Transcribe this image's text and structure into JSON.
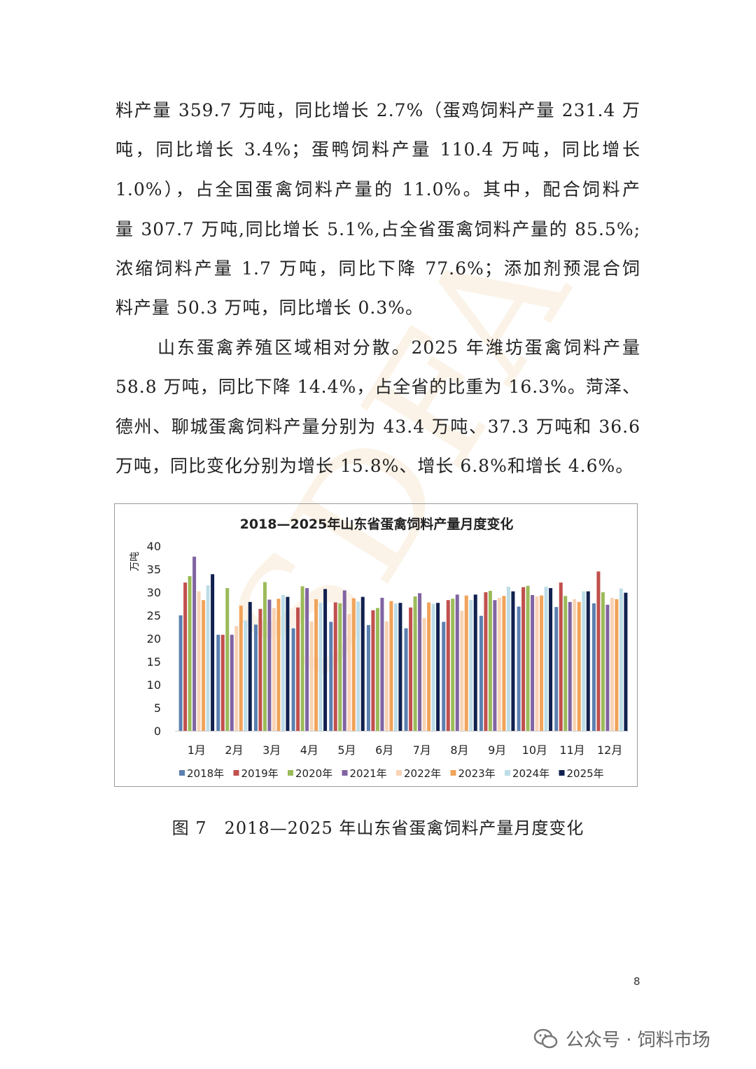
{
  "watermark_text": "SDFA",
  "paragraphs": [
    {
      "lines": [
        "料产量 359.7 万吨，同比增长 2.7%（蛋鸡饲料产量 231.4 万",
        "吨，同比增长 3.4%；蛋鸭饲料产量 110.4 万吨，同比增长",
        "1.0%），占全国蛋禽饲料产量的 11.0%。其中，配合饲料产",
        "量 307.7 万吨,同比增长 5.1%,占全省蛋禽饲料产量的 85.5%;",
        "浓缩饲料产量 1.7 万吨，同比下降 77.6%；添加剂预混合饲",
        "料产量 50.3 万吨，同比增长 0.3%。"
      ]
    },
    {
      "lines": [
        "山东蛋禽养殖区域相对分散。2025 年潍坊蛋禽饲料产量",
        "58.8 万吨，同比下降 14.4%，占全省的比重为 16.3%。菏泽、",
        "德州、聊城蛋禽饲料产量分别为 43.4 万吨、37.3 万吨和 36.6",
        "万吨，同比变化分别为增长 15.8%、增长 6.8%和增长 4.6%。"
      ]
    }
  ],
  "chart_data": {
    "type": "bar",
    "title": "2018—2025年山东省蛋禽饲料产量月度变化",
    "ylabel": "万吨",
    "xlabel": "",
    "ylim": [
      0,
      40
    ],
    "yticks": [
      0,
      5,
      10,
      15,
      20,
      25,
      30,
      35,
      40
    ],
    "grid": false,
    "legend_position": "bottom",
    "categories": [
      "1月",
      "2月",
      "3月",
      "4月",
      "5月",
      "6月",
      "7月",
      "8月",
      "9月",
      "10月",
      "11月",
      "12月"
    ],
    "series": [
      {
        "name": "2018年",
        "color": "#5b7fb0",
        "values": [
          25.0,
          20.8,
          23.0,
          22.2,
          23.6,
          22.9,
          22.2,
          23.6,
          24.9,
          26.9,
          26.8,
          27.6
        ]
      },
      {
        "name": "2019年",
        "color": "#c0504d",
        "values": [
          32.1,
          20.8,
          26.4,
          26.7,
          27.8,
          26.1,
          26.7,
          28.3,
          30.0,
          31.1,
          32.1,
          34.5
        ]
      },
      {
        "name": "2020年",
        "color": "#9bbb59",
        "values": [
          33.5,
          30.9,
          32.2,
          31.3,
          27.6,
          26.6,
          29.1,
          28.6,
          30.3,
          31.4,
          29.2,
          30.0
        ]
      },
      {
        "name": "2021年",
        "color": "#8064a2",
        "values": [
          37.7,
          20.8,
          28.4,
          30.9,
          30.4,
          28.8,
          29.8,
          29.5,
          28.3,
          29.4,
          27.9,
          27.3
        ]
      },
      {
        "name": "2022年",
        "color": "#f8d3b6",
        "values": [
          30.2,
          22.7,
          26.6,
          23.7,
          25.3,
          23.7,
          24.4,
          26.0,
          28.8,
          29.1,
          28.5,
          28.8
        ]
      },
      {
        "name": "2023年",
        "color": "#f0a35a",
        "values": [
          28.3,
          27.1,
          28.6,
          28.5,
          28.7,
          28.1,
          27.8,
          29.3,
          29.2,
          29.3,
          27.9,
          28.5
        ]
      },
      {
        "name": "2024年",
        "color": "#bcdde8",
        "values": [
          31.5,
          23.9,
          29.4,
          27.7,
          28.0,
          27.6,
          27.5,
          28.3,
          31.2,
          31.2,
          30.2,
          30.8
        ]
      },
      {
        "name": "2025年",
        "color": "#10214f",
        "values": [
          33.9,
          27.9,
          29.0,
          30.7,
          29.0,
          27.7,
          27.7,
          29.5,
          30.2,
          30.9,
          30.2,
          29.9
        ]
      }
    ]
  },
  "caption": "图 7　2018—2025 年山东省蛋禽饲料产量月度变化",
  "page_number": "8",
  "wechat_watermark": {
    "icon": "wechat-icon",
    "text": "公众号 · 饲料市场"
  }
}
